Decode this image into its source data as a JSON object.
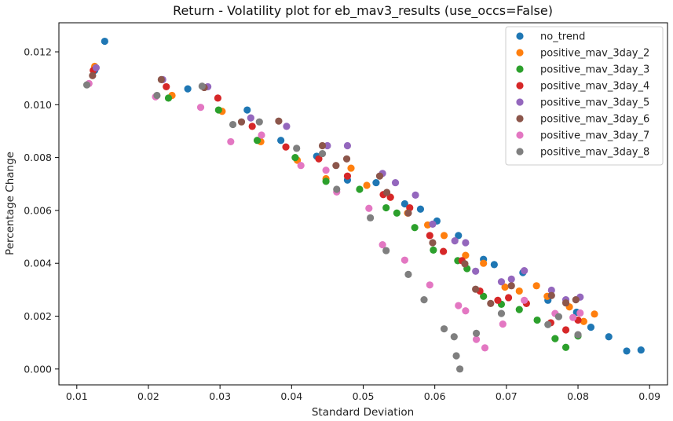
{
  "chart_data": {
    "type": "scatter",
    "title": "Return - Volatility plot for eb_mav3_results (use_occs=False)",
    "xlabel": "Standard Deviation",
    "ylabel": "Percentage Change",
    "xlim": [
      0.0075,
      0.0925
    ],
    "ylim": [
      -0.0006,
      0.0131
    ],
    "xticks": [
      "0.01",
      "0.02",
      "0.03",
      "0.04",
      "0.05",
      "0.06",
      "0.07",
      "0.08",
      "0.09"
    ],
    "yticks": [
      "0.000",
      "0.002",
      "0.004",
      "0.006",
      "0.008",
      "0.010",
      "0.012"
    ],
    "legend_position": "top-right",
    "grid": false,
    "series": [
      {
        "name": "no_trend",
        "color": "#1f77b4",
        "points": [
          [
            0.0139,
            0.0124
          ],
          [
            0.0125,
            0.0113
          ],
          [
            0.0255,
            0.0106
          ],
          [
            0.0338,
            0.0098
          ],
          [
            0.0385,
            0.00865
          ],
          [
            0.0435,
            0.00805
          ],
          [
            0.0478,
            0.00715
          ],
          [
            0.0518,
            0.00705
          ],
          [
            0.0558,
            0.00625
          ],
          [
            0.058,
            0.00605
          ],
          [
            0.0603,
            0.0056
          ],
          [
            0.0633,
            0.00505
          ],
          [
            0.0668,
            0.00415
          ],
          [
            0.0683,
            0.00395
          ],
          [
            0.0723,
            0.00365
          ],
          [
            0.0758,
            0.0026
          ],
          [
            0.0798,
            0.00215
          ],
          [
            0.0818,
            0.00158
          ],
          [
            0.0843,
            0.00122
          ],
          [
            0.0868,
            0.00068
          ],
          [
            0.0888,
            0.00072
          ]
        ]
      },
      {
        "name": "positive_mav_3day_2",
        "color": "#ff7f0e",
        "points": [
          [
            0.0125,
            0.01145
          ],
          [
            0.0233,
            0.01035
          ],
          [
            0.0303,
            0.00975
          ],
          [
            0.0357,
            0.0086
          ],
          [
            0.0408,
            0.0079
          ],
          [
            0.0448,
            0.0072
          ],
          [
            0.0483,
            0.0076
          ],
          [
            0.0505,
            0.00695
          ],
          [
            0.0538,
            0.0065
          ],
          [
            0.0562,
            0.0059
          ],
          [
            0.059,
            0.00545
          ],
          [
            0.0613,
            0.00505
          ],
          [
            0.0643,
            0.0043
          ],
          [
            0.0668,
            0.004
          ],
          [
            0.0698,
            0.0031
          ],
          [
            0.0718,
            0.00295
          ],
          [
            0.0742,
            0.00315
          ],
          [
            0.0757,
            0.00275
          ],
          [
            0.0788,
            0.00235
          ],
          [
            0.0808,
            0.0018
          ],
          [
            0.0823,
            0.00208
          ]
        ]
      },
      {
        "name": "positive_mav_3day_3",
        "color": "#2ca02c",
        "points": [
          [
            0.0228,
            0.01025
          ],
          [
            0.0298,
            0.0098
          ],
          [
            0.0352,
            0.00865
          ],
          [
            0.0405,
            0.008
          ],
          [
            0.0448,
            0.0071
          ],
          [
            0.0495,
            0.0068
          ],
          [
            0.0532,
            0.0061
          ],
          [
            0.0547,
            0.0059
          ],
          [
            0.0572,
            0.00535
          ],
          [
            0.0598,
            0.0045
          ],
          [
            0.0632,
            0.0041
          ],
          [
            0.0645,
            0.0038
          ],
          [
            0.0668,
            0.00275
          ],
          [
            0.0693,
            0.00245
          ],
          [
            0.0718,
            0.00225
          ],
          [
            0.0743,
            0.00185
          ],
          [
            0.0768,
            0.00115
          ],
          [
            0.0783,
            0.00082
          ],
          [
            0.08,
            0.00125
          ]
        ]
      },
      {
        "name": "positive_mav_3day_4",
        "color": "#d62728",
        "points": [
          [
            0.0123,
            0.0113
          ],
          [
            0.0225,
            0.01068
          ],
          [
            0.0297,
            0.01025
          ],
          [
            0.0345,
            0.00918
          ],
          [
            0.0392,
            0.0084
          ],
          [
            0.0438,
            0.00795
          ],
          [
            0.0478,
            0.0073
          ],
          [
            0.0528,
            0.0066
          ],
          [
            0.0538,
            0.0065
          ],
          [
            0.0565,
            0.0061
          ],
          [
            0.0593,
            0.00505
          ],
          [
            0.0612,
            0.00445
          ],
          [
            0.0638,
            0.0041
          ],
          [
            0.0663,
            0.00295
          ],
          [
            0.0688,
            0.0026
          ],
          [
            0.0703,
            0.0027
          ],
          [
            0.0728,
            0.00248
          ],
          [
            0.0762,
            0.00175
          ],
          [
            0.0783,
            0.00148
          ],
          [
            0.08,
            0.00185
          ]
        ]
      },
      {
        "name": "positive_mav_3day_5",
        "color": "#9467bd",
        "points": [
          [
            0.0127,
            0.0114
          ],
          [
            0.022,
            0.01095
          ],
          [
            0.0283,
            0.01068
          ],
          [
            0.0343,
            0.0095
          ],
          [
            0.0393,
            0.00918
          ],
          [
            0.045,
            0.00845
          ],
          [
            0.0478,
            0.00845
          ],
          [
            0.0527,
            0.0074
          ],
          [
            0.0545,
            0.00705
          ],
          [
            0.0573,
            0.00658
          ],
          [
            0.0597,
            0.00548
          ],
          [
            0.0628,
            0.00485
          ],
          [
            0.0643,
            0.00478
          ],
          [
            0.0657,
            0.0037
          ],
          [
            0.0693,
            0.0033
          ],
          [
            0.0707,
            0.0034
          ],
          [
            0.0725,
            0.00372
          ],
          [
            0.0763,
            0.00298
          ],
          [
            0.0783,
            0.00262
          ],
          [
            0.0803,
            0.00272
          ]
        ]
      },
      {
        "name": "positive_mav_3day_6",
        "color": "#8c564b",
        "points": [
          [
            0.0122,
            0.0111
          ],
          [
            0.0218,
            0.01095
          ],
          [
            0.0278,
            0.01065
          ],
          [
            0.033,
            0.00935
          ],
          [
            0.0382,
            0.00938
          ],
          [
            0.0443,
            0.00845
          ],
          [
            0.0462,
            0.0077
          ],
          [
            0.0477,
            0.00795
          ],
          [
            0.0523,
            0.0073
          ],
          [
            0.0533,
            0.00668
          ],
          [
            0.0563,
            0.0059
          ],
          [
            0.0597,
            0.00478
          ],
          [
            0.0642,
            0.00398
          ],
          [
            0.0657,
            0.00302
          ],
          [
            0.0678,
            0.00248
          ],
          [
            0.0707,
            0.00315
          ],
          [
            0.0763,
            0.00278
          ],
          [
            0.0783,
            0.0025
          ],
          [
            0.0797,
            0.00262
          ]
        ]
      },
      {
        "name": "positive_mav_3day_7",
        "color": "#e377c2",
        "points": [
          [
            0.0117,
            0.0108
          ],
          [
            0.021,
            0.0103
          ],
          [
            0.0273,
            0.0099
          ],
          [
            0.0315,
            0.0086
          ],
          [
            0.0358,
            0.00885
          ],
          [
            0.0413,
            0.0077
          ],
          [
            0.0448,
            0.00752
          ],
          [
            0.0463,
            0.0067
          ],
          [
            0.0508,
            0.00608
          ],
          [
            0.0527,
            0.0047
          ],
          [
            0.0558,
            0.00412
          ],
          [
            0.0593,
            0.00318
          ],
          [
            0.0633,
            0.0024
          ],
          [
            0.0643,
            0.0022
          ],
          [
            0.0658,
            0.00112
          ],
          [
            0.067,
            0.0008
          ],
          [
            0.0695,
            0.0017
          ],
          [
            0.0725,
            0.0026
          ],
          [
            0.0768,
            0.0021
          ],
          [
            0.0793,
            0.00195
          ],
          [
            0.0803,
            0.00212
          ]
        ]
      },
      {
        "name": "positive_mav_3day_8",
        "color": "#7f7f7f",
        "points": [
          [
            0.0114,
            0.01075
          ],
          [
            0.0212,
            0.01035
          ],
          [
            0.0275,
            0.0107
          ],
          [
            0.0318,
            0.00925
          ],
          [
            0.0355,
            0.00935
          ],
          [
            0.0407,
            0.00835
          ],
          [
            0.0443,
            0.00815
          ],
          [
            0.0463,
            0.0068
          ],
          [
            0.051,
            0.00572
          ],
          [
            0.0532,
            0.00448
          ],
          [
            0.0563,
            0.00358
          ],
          [
            0.0585,
            0.00262
          ],
          [
            0.0613,
            0.00152
          ],
          [
            0.0627,
            0.00122
          ],
          [
            0.063,
            0.0005
          ],
          [
            0.0635,
            0.0
          ],
          [
            0.0658,
            0.00135
          ],
          [
            0.0693,
            0.0021
          ],
          [
            0.0758,
            0.00168
          ],
          [
            0.0773,
            0.00198
          ],
          [
            0.08,
            0.0013
          ]
        ]
      }
    ]
  }
}
